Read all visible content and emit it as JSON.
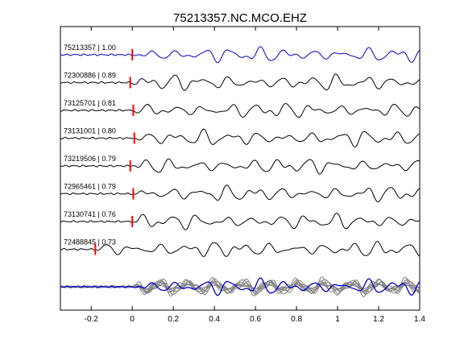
{
  "chart_data": {
    "type": "line",
    "title": "75213357.NC.MCO.EHZ",
    "xlabel": "",
    "ylabel": "",
    "xlim": [
      -0.35,
      1.4
    ],
    "x_ticks": [
      "-0.2",
      "0",
      "0.2",
      "0.4",
      "0.6",
      "0.8",
      "1",
      "1.2",
      "1.4"
    ],
    "x_tick_values": [
      -0.2,
      0,
      0.2,
      0.4,
      0.6,
      0.8,
      1.0,
      1.2,
      1.4
    ],
    "grid": false,
    "colors": {
      "reference": "#0000cc",
      "trace": "#000000",
      "pick": "#ff0000",
      "overlay": "#808080"
    },
    "series": [
      {
        "event_id": "75213357",
        "correlation": "1.00",
        "label": "75213357 | 1.00",
        "pick_time": 0.0,
        "color": "reference"
      },
      {
        "event_id": "72300886",
        "correlation": "0.89",
        "label": "72300886 | 0.89",
        "pick_time": -0.01,
        "color": "trace"
      },
      {
        "event_id": "73125701",
        "correlation": "0.81",
        "label": "73125701 | 0.81",
        "pick_time": 0.005,
        "color": "trace"
      },
      {
        "event_id": "73131001",
        "correlation": "0.80",
        "label": "73131001 | 0.80",
        "pick_time": 0.01,
        "color": "trace"
      },
      {
        "event_id": "73219506",
        "correlation": "0.79",
        "label": "73219506 | 0.79",
        "pick_time": -0.01,
        "color": "trace"
      },
      {
        "event_id": "72965461",
        "correlation": "0.79",
        "label": "72965461 | 0.79",
        "pick_time": 0.005,
        "color": "trace"
      },
      {
        "event_id": "73130741",
        "correlation": "0.76",
        "label": "73130741 | 0.76",
        "pick_time": 0.0,
        "color": "trace"
      },
      {
        "event_id": "72488845",
        "correlation": "0.73",
        "label": "72488845 | 0.73",
        "pick_time": -0.18,
        "color": "trace"
      }
    ],
    "stack": {
      "description_hidden": true,
      "color": "overlay",
      "reference_color": "reference"
    }
  }
}
